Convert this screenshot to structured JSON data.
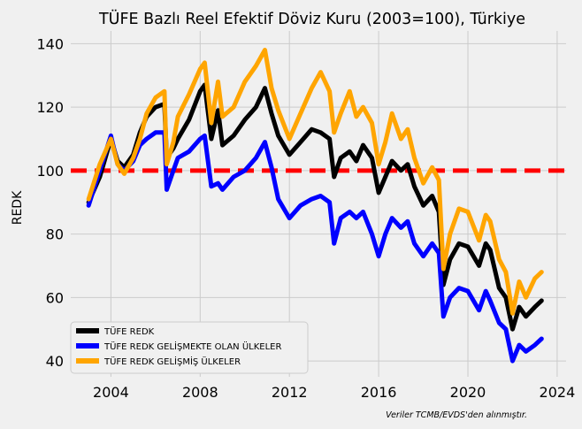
{
  "chart_data": {
    "type": "line",
    "title": "TÜFE Bazlı Reel Efektif Döviz Kuru (2003=100), Türkiye",
    "xlabel": "",
    "ylabel": "REDK",
    "xlim": [
      2002.2,
      2024.4
    ],
    "ylim": [
      35,
      144
    ],
    "x_ticks": [
      2004,
      2008,
      2012,
      2016,
      2020,
      2024
    ],
    "x_tick_labels": [
      "2004",
      "2008",
      "2012",
      "2016",
      "2020",
      "2024"
    ],
    "y_ticks": [
      40,
      60,
      80,
      100,
      120,
      140
    ],
    "y_tick_labels": [
      "40",
      "60",
      "80",
      "100",
      "120",
      "140"
    ],
    "grid": true,
    "legend_position": "bottom-left",
    "reference_line": {
      "y": 100,
      "color": "#ff0000",
      "style": "dashed"
    },
    "source_note": "Veriler TCMB/EVDS'den alınmıştır.",
    "series": [
      {
        "name": "TÜFE REDK",
        "color": "#000000",
        "x": [
          2003.0,
          2003.5,
          2004.0,
          2004.3,
          2004.6,
          2005.0,
          2005.3,
          2005.6,
          2006.0,
          2006.4,
          2006.5,
          2006.8,
          2007.0,
          2007.5,
          2008.0,
          2008.2,
          2008.5,
          2008.8,
          2009.0,
          2009.5,
          2010.0,
          2010.5,
          2010.9,
          2011.2,
          2011.5,
          2012.0,
          2012.5,
          2013.0,
          2013.4,
          2013.8,
          2014.0,
          2014.3,
          2014.7,
          2015.0,
          2015.3,
          2015.7,
          2016.0,
          2016.3,
          2016.6,
          2017.0,
          2017.3,
          2017.6,
          2018.0,
          2018.4,
          2018.7,
          2018.9,
          2019.2,
          2019.6,
          2020.0,
          2020.5,
          2020.8,
          2021.0,
          2021.4,
          2021.7,
          2022.0,
          2022.3,
          2022.6,
          2023.0,
          2023.3
        ],
        "y": [
          90,
          98,
          110,
          103,
          101,
          105,
          112,
          117,
          120,
          121,
          104,
          107,
          110,
          116,
          125,
          127,
          110,
          119,
          108,
          111,
          116,
          120,
          126,
          118,
          111,
          105,
          109,
          113,
          112,
          110,
          98,
          104,
          106,
          103,
          108,
          104,
          93,
          98,
          103,
          100,
          102,
          95,
          89,
          92,
          87,
          64,
          72,
          77,
          76,
          70,
          77,
          75,
          63,
          60,
          50,
          57,
          54,
          57,
          59
        ],
        "values": [
          90,
          98,
          110,
          103,
          101,
          105,
          112,
          117,
          120,
          121,
          104,
          107,
          110,
          116,
          125,
          127,
          110,
          119,
          108,
          111,
          116,
          120,
          126,
          118,
          111,
          105,
          109,
          113,
          112,
          110,
          98,
          104,
          106,
          103,
          108,
          104,
          93,
          98,
          103,
          100,
          102,
          95,
          89,
          92,
          87,
          64,
          72,
          77,
          76,
          70,
          77,
          75,
          63,
          60,
          50,
          57,
          54,
          57,
          59
        ]
      },
      {
        "name": "TÜFE REDK GELİŞMEKTE OLAN ÜLKELER",
        "color": "#0000ff",
        "x": [
          2003.0,
          2003.5,
          2004.0,
          2004.3,
          2004.6,
          2005.0,
          2005.3,
          2005.6,
          2006.0,
          2006.4,
          2006.5,
          2006.8,
          2007.0,
          2007.5,
          2008.0,
          2008.2,
          2008.5,
          2008.8,
          2009.0,
          2009.5,
          2010.0,
          2010.5,
          2010.9,
          2011.2,
          2011.5,
          2012.0,
          2012.5,
          2013.0,
          2013.4,
          2013.8,
          2014.0,
          2014.3,
          2014.7,
          2015.0,
          2015.3,
          2015.7,
          2016.0,
          2016.3,
          2016.6,
          2017.0,
          2017.3,
          2017.6,
          2018.0,
          2018.4,
          2018.7,
          2018.9,
          2019.2,
          2019.6,
          2020.0,
          2020.5,
          2020.8,
          2021.0,
          2021.4,
          2021.7,
          2022.0,
          2022.3,
          2022.6,
          2023.0,
          2023.3
        ],
        "y": [
          89,
          100,
          111,
          102,
          100,
          103,
          108,
          110,
          112,
          112,
          94,
          100,
          104,
          106,
          110,
          111,
          95,
          96,
          94,
          98,
          100,
          104,
          109,
          101,
          91,
          85,
          89,
          91,
          92,
          90,
          77,
          85,
          87,
          85,
          87,
          80,
          73,
          80,
          85,
          82,
          84,
          77,
          73,
          77,
          74,
          54,
          60,
          63,
          62,
          56,
          62,
          59,
          52,
          50,
          40,
          45,
          43,
          45,
          47
        ],
        "values": [
          89,
          100,
          111,
          102,
          100,
          103,
          108,
          110,
          112,
          112,
          94,
          100,
          104,
          106,
          110,
          111,
          95,
          96,
          94,
          98,
          100,
          104,
          109,
          101,
          91,
          85,
          89,
          91,
          92,
          90,
          77,
          85,
          87,
          85,
          87,
          80,
          73,
          80,
          85,
          82,
          84,
          77,
          73,
          77,
          74,
          54,
          60,
          63,
          62,
          56,
          62,
          59,
          52,
          50,
          40,
          45,
          43,
          45,
          47
        ]
      },
      {
        "name": "TÜFE REDK GELİŞMİŞ ÜLKELER",
        "color": "#ffa500",
        "x": [
          2003.0,
          2003.5,
          2004.0,
          2004.3,
          2004.6,
          2005.0,
          2005.3,
          2005.6,
          2006.0,
          2006.4,
          2006.5,
          2006.8,
          2007.0,
          2007.5,
          2008.0,
          2008.2,
          2008.5,
          2008.8,
          2009.0,
          2009.5,
          2010.0,
          2010.5,
          2010.9,
          2011.2,
          2011.5,
          2012.0,
          2012.5,
          2013.0,
          2013.4,
          2013.8,
          2014.0,
          2014.3,
          2014.7,
          2015.0,
          2015.3,
          2015.7,
          2016.0,
          2016.3,
          2016.6,
          2017.0,
          2017.3,
          2017.6,
          2018.0,
          2018.4,
          2018.7,
          2018.9,
          2019.2,
          2019.6,
          2020.0,
          2020.5,
          2020.8,
          2021.0,
          2021.4,
          2021.7,
          2022.0,
          2022.3,
          2022.6,
          2023.0,
          2023.3
        ],
        "y": [
          91,
          102,
          110,
          102,
          99,
          104,
          110,
          118,
          123,
          125,
          102,
          109,
          117,
          124,
          132,
          134,
          115,
          128,
          117,
          120,
          128,
          133,
          138,
          126,
          119,
          110,
          118,
          126,
          131,
          125,
          112,
          118,
          125,
          117,
          120,
          115,
          102,
          109,
          118,
          110,
          113,
          104,
          96,
          101,
          97,
          69,
          80,
          88,
          87,
          78,
          86,
          84,
          72,
          68,
          55,
          65,
          60,
          66,
          68
        ],
        "values": [
          91,
          102,
          110,
          102,
          99,
          104,
          110,
          118,
          123,
          125,
          102,
          109,
          117,
          124,
          132,
          134,
          115,
          128,
          117,
          120,
          128,
          133,
          138,
          126,
          119,
          110,
          118,
          126,
          131,
          125,
          112,
          118,
          125,
          117,
          120,
          115,
          102,
          109,
          118,
          110,
          113,
          104,
          96,
          101,
          97,
          69,
          80,
          88,
          87,
          78,
          86,
          84,
          72,
          68,
          55,
          65,
          60,
          66,
          68
        ]
      }
    ]
  }
}
